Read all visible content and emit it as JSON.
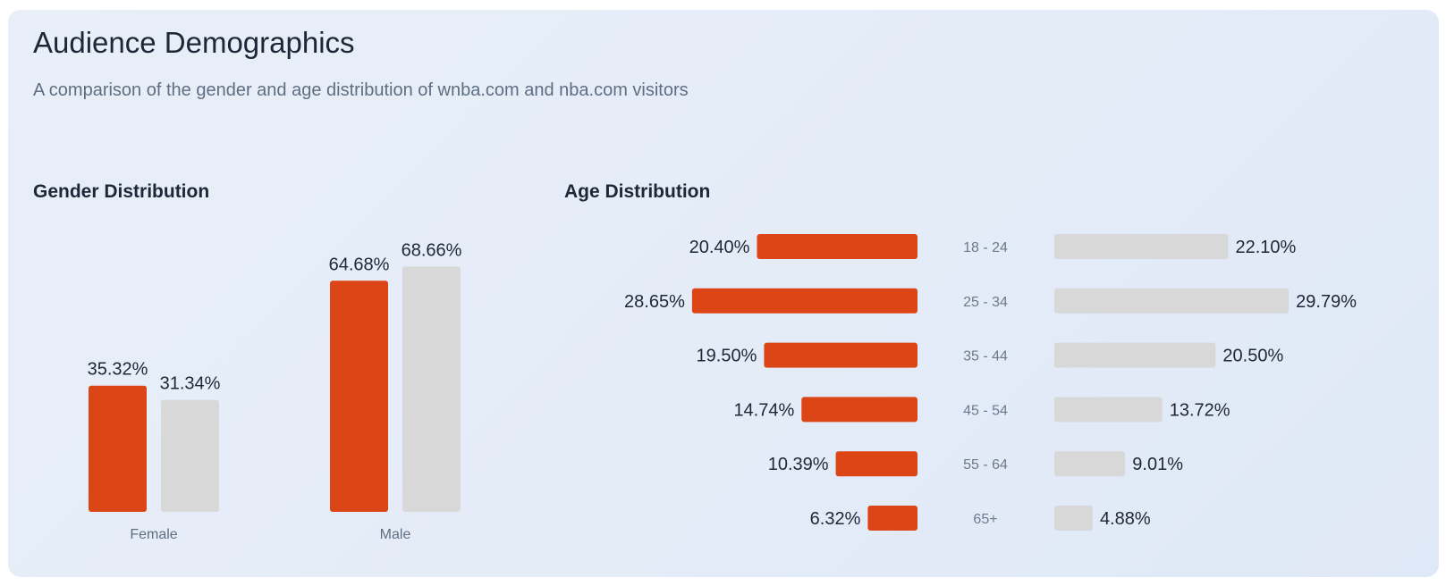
{
  "header": {
    "title": "Audience Demographics",
    "subtitle": "A comparison of the gender and age distribution of wnba.com and nba.com visitors"
  },
  "colors": {
    "wnba": "#dc4516",
    "nba": "#d8d8d8"
  },
  "chart_data": [
    {
      "type": "bar",
      "title": "Gender Distribution",
      "categories": [
        "Female",
        "Male"
      ],
      "series": [
        {
          "values": [
            35.32,
            64.68
          ],
          "labels": [
            "35.32%",
            "64.68%"
          ]
        },
        {
          "values": [
            31.34,
            68.66
          ],
          "labels": [
            "31.34%",
            "68.66%"
          ]
        }
      ],
      "ylim": [
        0,
        100
      ],
      "grid": false
    },
    {
      "type": "bar",
      "orientation": "horizontal-diverging",
      "title": "Age Distribution",
      "categories": [
        "18 - 24",
        "25 - 34",
        "35 - 44",
        "45 - 54",
        "55 - 64",
        "65+"
      ],
      "series": [
        {
          "values": [
            20.4,
            28.65,
            19.5,
            14.74,
            10.39,
            6.32
          ],
          "labels": [
            "20.40%",
            "28.65%",
            "19.50%",
            "14.74%",
            "10.39%",
            "6.32%"
          ]
        },
        {
          "values": [
            22.1,
            29.79,
            20.5,
            13.72,
            9.01,
            4.88
          ],
          "labels": [
            "22.10%",
            "29.79%",
            "20.50%",
            "13.72%",
            "9.01%",
            "4.88%"
          ]
        }
      ],
      "grid": false
    }
  ]
}
